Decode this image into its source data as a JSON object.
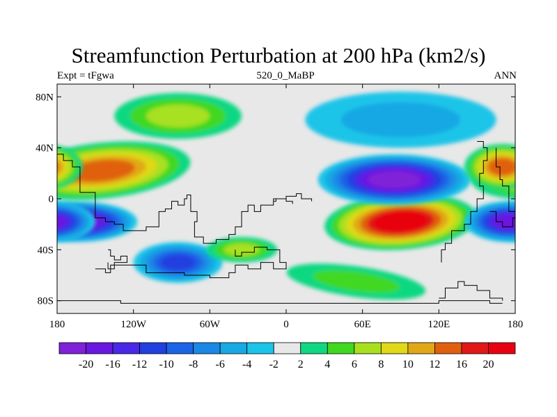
{
  "chart_data": {
    "type": "contour",
    "title": "Streamfunction Perturbation at 200 hPa (km2/s)",
    "subtitle_left": "Expt = tFgwa",
    "subtitle_center": "520_0_MaBP",
    "subtitle_right": "ANN",
    "x_ticks": [
      "180",
      "120W",
      "60W",
      "0",
      "60E",
      "120E",
      "180"
    ],
    "x_tick_values": [
      -180,
      -120,
      -60,
      0,
      60,
      120,
      180
    ],
    "y_ticks": [
      "80N",
      "40N",
      "0",
      "40S",
      "80S"
    ],
    "y_tick_values": [
      80,
      40,
      0,
      -40,
      -80
    ],
    "xlim": [
      -180,
      180
    ],
    "ylim": [
      -90,
      90
    ],
    "colorbar": {
      "labels": [
        "-20",
        "-16",
        "-12",
        "-10",
        "-8",
        "-6",
        "-4",
        "-2",
        "2",
        "4",
        "6",
        "8",
        "10",
        "12",
        "16",
        "20"
      ],
      "levels": [
        -20,
        -16,
        -12,
        -10,
        -8,
        -6,
        -4,
        -2,
        2,
        4,
        6,
        8,
        10,
        12,
        16,
        20
      ],
      "colors": [
        "#8020d8",
        "#6a18e0",
        "#4a28e8",
        "#2040e0",
        "#1c64e6",
        "#1a88e4",
        "#18a8e4",
        "#1cc4e8",
        "#e8e8e8",
        "#10d882",
        "#40d820",
        "#a8e020",
        "#e0d818",
        "#e0a818",
        "#e06010",
        "#e01818",
        "#e80010"
      ]
    },
    "features": [
      {
        "name": "high-eastern-hemisphere-tropics",
        "lon": 90,
        "lat": -18,
        "peak": 20
      },
      {
        "name": "low-asia-subtropics",
        "lon": 85,
        "lat": 15,
        "peak": -20
      },
      {
        "name": "low-pacific-tropics",
        "lon": -165,
        "lat": -18,
        "peak": -20
      },
      {
        "name": "high-pacific-subtropics",
        "lon": -145,
        "lat": 22,
        "peak": 14
      },
      {
        "name": "high-north-atlantic",
        "lon": -85,
        "lat": 65,
        "peak": 6
      },
      {
        "name": "low-north-eurasia",
        "lon": 90,
        "lat": 62,
        "peak": -4
      },
      {
        "name": "low-south-america",
        "lon": -85,
        "lat": -50,
        "peak": -10
      },
      {
        "name": "high-south-atlantic",
        "lon": -35,
        "lat": -40,
        "peak": 6
      },
      {
        "name": "high-southern-ocean",
        "lon": 55,
        "lat": -65,
        "peak": 4
      },
      {
        "name": "low-west-pacific-tropics",
        "lon": 175,
        "lat": -18,
        "peak": -16
      },
      {
        "name": "high-west-pacific-subtropics",
        "lon": 170,
        "lat": 25,
        "peak": 12
      }
    ]
  }
}
